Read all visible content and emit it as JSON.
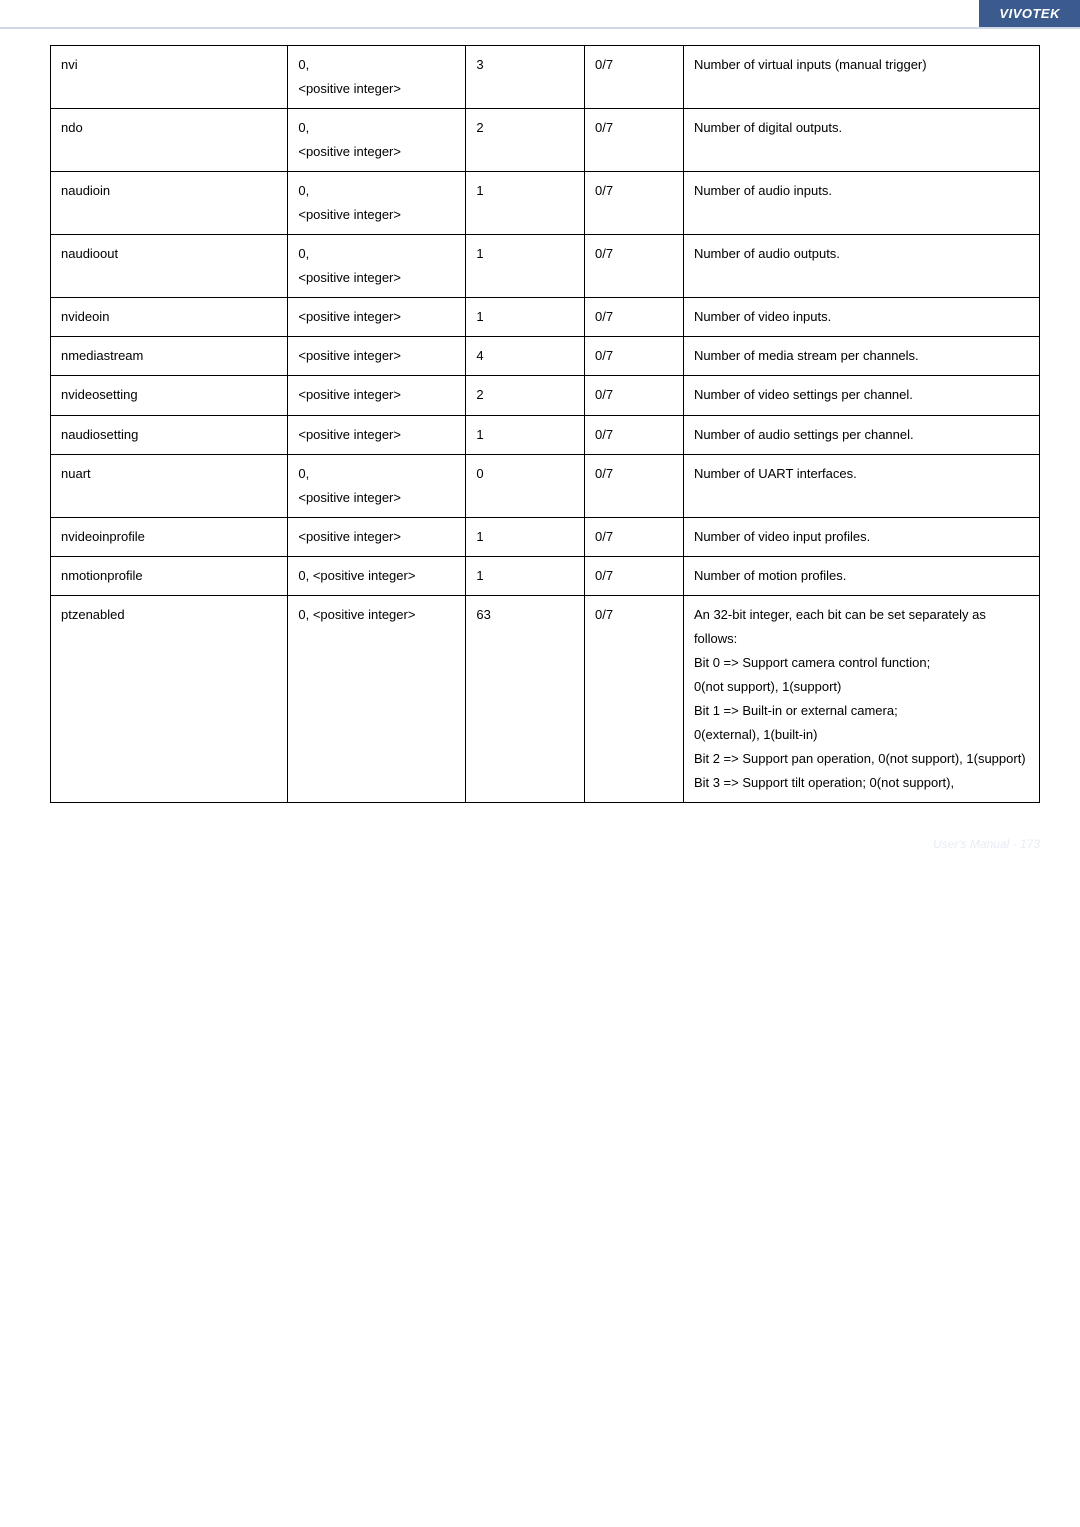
{
  "brand": "VIVOTEK",
  "footer": "User's Manual - 173",
  "columns": [
    "name",
    "type",
    "default",
    "security",
    "description"
  ],
  "rows": [
    {
      "name": "nvi",
      "type": "0,\n<positive integer>",
      "default": "3",
      "security": "0/7",
      "description": "Number of virtual inputs (manual trigger)"
    },
    {
      "name": "ndo",
      "type": "0,\n<positive integer>",
      "default": "2",
      "security": "0/7",
      "description": "Number of digital outputs."
    },
    {
      "name": "naudioin",
      "type": "0,\n<positive integer>",
      "default": "1",
      "security": "0/7",
      "description": "Number of audio inputs."
    },
    {
      "name": "naudioout",
      "type": "0,\n<positive integer>",
      "default": "1",
      "security": "0/7",
      "description": "Number of audio outputs."
    },
    {
      "name": "nvideoin",
      "type": "<positive integer>",
      "default": "1",
      "security": "0/7",
      "description": "Number of video inputs."
    },
    {
      "name": "nmediastream",
      "type": "<positive integer>",
      "default": "4",
      "security": "0/7",
      "description": "Number of media stream per channels."
    },
    {
      "name": "nvideosetting",
      "type": "<positive integer>",
      "default": "2",
      "security": "0/7",
      "description": "Number of video settings per channel."
    },
    {
      "name": "naudiosetting",
      "type": "<positive integer>",
      "default": "1",
      "security": "0/7",
      "description": "Number of audio settings per channel."
    },
    {
      "name": "nuart",
      "type": "0,\n<positive integer>",
      "default": "0",
      "security": "0/7",
      "description": "Number of UART interfaces."
    },
    {
      "name": "nvideoinprofile",
      "type": "<positive integer>",
      "default": "1",
      "security": "0/7",
      "description": "Number of video input profiles."
    },
    {
      "name": "nmotionprofile",
      "type": "0, <positive integer>",
      "default": "1",
      "security": "0/7",
      "description": "Number of motion profiles."
    },
    {
      "name": "ptzenabled",
      "type": "0, <positive integer>",
      "default": "63",
      "security": "0/7",
      "description": "An 32-bit integer, each bit can be set separately as follows:\nBit 0 => Support camera control function;\n0(not support), 1(support)\nBit 1 => Built-in or external camera;\n0(external), 1(built-in)\nBit 2 => Support pan operation, 0(not support), 1(support)\nBit 3 => Support tilt operation; 0(not support),"
    }
  ]
}
